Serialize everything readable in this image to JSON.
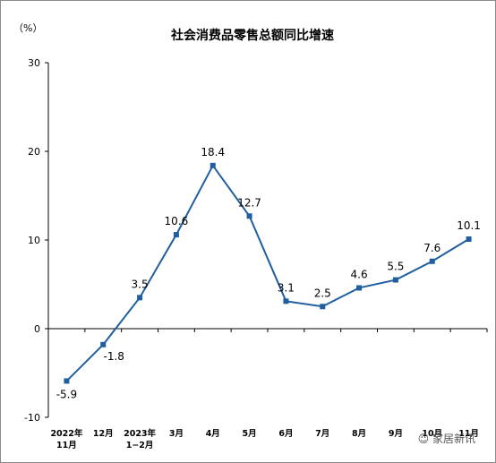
{
  "chart_data": {
    "type": "line",
    "title": "社会消费品零售总额同比增速",
    "unit_label": "（%）",
    "categories": [
      [
        "2022年",
        "11月"
      ],
      [
        "12月"
      ],
      [
        "2023年",
        "1−2月"
      ],
      [
        "3月"
      ],
      [
        "4月"
      ],
      [
        "5月"
      ],
      [
        "6月"
      ],
      [
        "7月"
      ],
      [
        "8月"
      ],
      [
        "9月"
      ],
      [
        "10月"
      ],
      [
        "11月"
      ]
    ],
    "values": [
      -5.9,
      -1.8,
      3.5,
      10.6,
      18.4,
      12.7,
      3.1,
      2.5,
      4.6,
      5.5,
      7.6,
      10.1
    ],
    "ylim": [
      -10,
      30
    ],
    "yticks": [
      -10,
      0,
      10,
      20,
      30
    ],
    "grid": false,
    "line_color": "#1f5fa0"
  },
  "watermark": {
    "icon": "wechat-icon",
    "text": "家居新讯"
  }
}
